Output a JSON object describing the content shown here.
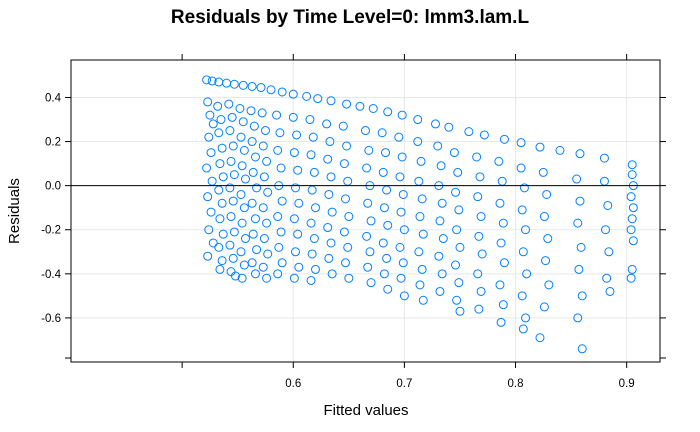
{
  "chart_data": {
    "type": "scatter",
    "title": "Residuals by Time Level=0: lmm3.lam.L",
    "xlabel": "Fitted values",
    "ylabel": "Residuals",
    "xlim": [
      0.4,
      0.93
    ],
    "ylim": [
      -0.8,
      0.57
    ],
    "x_ticks": [
      {
        "value": 0.6,
        "label": "0.6"
      },
      {
        "value": 0.7,
        "label": "0.7"
      },
      {
        "value": 0.8,
        "label": "0.8"
      },
      {
        "value": 0.9,
        "label": "0.9"
      }
    ],
    "y_ticks": [
      {
        "value": 0.4,
        "label": "0.4"
      },
      {
        "value": 0.2,
        "label": "0.2"
      },
      {
        "value": 0.0,
        "label": "0.0"
      },
      {
        "value": -0.2,
        "label": "-0.2"
      },
      {
        "value": -0.4,
        "label": "-0.4"
      },
      {
        "value": -0.6,
        "label": "-0.6"
      }
    ],
    "reference_line_y": 0.0,
    "grid": true,
    "marker": "open-circle",
    "point_color": "#0080ff",
    "points": [
      [
        0.522,
        0.48
      ],
      [
        0.527,
        0.475
      ],
      [
        0.533,
        0.47
      ],
      [
        0.54,
        0.465
      ],
      [
        0.547,
        0.46
      ],
      [
        0.555,
        0.455
      ],
      [
        0.563,
        0.45
      ],
      [
        0.571,
        0.445
      ],
      [
        0.58,
        0.435
      ],
      [
        0.59,
        0.425
      ],
      [
        0.6,
        0.415
      ],
      [
        0.612,
        0.405
      ],
      [
        0.622,
        0.395
      ],
      [
        0.634,
        0.385
      ],
      [
        0.648,
        0.37
      ],
      [
        0.66,
        0.36
      ],
      [
        0.672,
        0.35
      ],
      [
        0.685,
        0.335
      ],
      [
        0.698,
        0.32
      ],
      [
        0.712,
        0.3
      ],
      [
        0.728,
        0.28
      ],
      [
        0.74,
        0.265
      ],
      [
        0.758,
        0.245
      ],
      [
        0.772,
        0.23
      ],
      [
        0.79,
        0.21
      ],
      [
        0.805,
        0.195
      ],
      [
        0.822,
        0.175
      ],
      [
        0.84,
        0.16
      ],
      [
        0.858,
        0.145
      ],
      [
        0.88,
        0.125
      ],
      [
        0.905,
        0.095
      ],
      [
        0.523,
        0.38
      ],
      [
        0.525,
        0.32
      ],
      [
        0.528,
        0.28
      ],
      [
        0.524,
        0.22
      ],
      [
        0.526,
        0.15
      ],
      [
        0.522,
        0.08
      ],
      [
        0.527,
        0.02
      ],
      [
        0.523,
        -0.05
      ],
      [
        0.526,
        -0.12
      ],
      [
        0.524,
        -0.2
      ],
      [
        0.528,
        -0.26
      ],
      [
        0.523,
        -0.32
      ],
      [
        0.532,
        0.36
      ],
      [
        0.535,
        0.3
      ],
      [
        0.533,
        0.24
      ],
      [
        0.536,
        0.17
      ],
      [
        0.534,
        0.1
      ],
      [
        0.537,
        0.04
      ],
      [
        0.533,
        -0.02
      ],
      [
        0.536,
        -0.08
      ],
      [
        0.534,
        -0.15
      ],
      [
        0.537,
        -0.22
      ],
      [
        0.533,
        -0.28
      ],
      [
        0.536,
        -0.34
      ],
      [
        0.534,
        -0.38
      ],
      [
        0.542,
        0.37
      ],
      [
        0.545,
        0.31
      ],
      [
        0.543,
        0.25
      ],
      [
        0.546,
        0.18
      ],
      [
        0.544,
        0.11
      ],
      [
        0.547,
        0.05
      ],
      [
        0.543,
        -0.01
      ],
      [
        0.546,
        -0.07
      ],
      [
        0.544,
        -0.14
      ],
      [
        0.547,
        -0.21
      ],
      [
        0.543,
        -0.27
      ],
      [
        0.546,
        -0.33
      ],
      [
        0.544,
        -0.39
      ],
      [
        0.548,
        -0.41
      ],
      [
        0.552,
        0.35
      ],
      [
        0.555,
        0.29
      ],
      [
        0.553,
        0.22
      ],
      [
        0.556,
        0.16
      ],
      [
        0.554,
        0.09
      ],
      [
        0.557,
        0.03
      ],
      [
        0.553,
        -0.04
      ],
      [
        0.556,
        -0.1
      ],
      [
        0.554,
        -0.17
      ],
      [
        0.557,
        -0.24
      ],
      [
        0.553,
        -0.3
      ],
      [
        0.556,
        -0.36
      ],
      [
        0.554,
        -0.42
      ],
      [
        0.562,
        0.34
      ],
      [
        0.565,
        0.27
      ],
      [
        0.563,
        0.2
      ],
      [
        0.566,
        0.13
      ],
      [
        0.564,
        0.06
      ],
      [
        0.567,
        -0.01
      ],
      [
        0.563,
        -0.08
      ],
      [
        0.566,
        -0.15
      ],
      [
        0.564,
        -0.22
      ],
      [
        0.567,
        -0.29
      ],
      [
        0.563,
        -0.35
      ],
      [
        0.566,
        -0.4
      ],
      [
        0.572,
        0.33
      ],
      [
        0.575,
        0.25
      ],
      [
        0.573,
        0.18
      ],
      [
        0.576,
        0.11
      ],
      [
        0.574,
        0.04
      ],
      [
        0.577,
        -0.03
      ],
      [
        0.573,
        -0.1
      ],
      [
        0.576,
        -0.17
      ],
      [
        0.574,
        -0.24
      ],
      [
        0.577,
        -0.31
      ],
      [
        0.573,
        -0.37
      ],
      [
        0.576,
        -0.42
      ],
      [
        0.585,
        0.32
      ],
      [
        0.588,
        0.24
      ],
      [
        0.586,
        0.16
      ],
      [
        0.589,
        0.08
      ],
      [
        0.587,
        0.0
      ],
      [
        0.59,
        -0.07
      ],
      [
        0.586,
        -0.14
      ],
      [
        0.589,
        -0.21
      ],
      [
        0.587,
        -0.28
      ],
      [
        0.59,
        -0.35
      ],
      [
        0.586,
        -0.4
      ],
      [
        0.6,
        0.31
      ],
      [
        0.603,
        0.23
      ],
      [
        0.601,
        0.15
      ],
      [
        0.604,
        0.07
      ],
      [
        0.602,
        -0.01
      ],
      [
        0.605,
        -0.08
      ],
      [
        0.601,
        -0.15
      ],
      [
        0.604,
        -0.22
      ],
      [
        0.602,
        -0.3
      ],
      [
        0.605,
        -0.37
      ],
      [
        0.601,
        -0.42
      ],
      [
        0.615,
        0.3
      ],
      [
        0.618,
        0.22
      ],
      [
        0.616,
        0.14
      ],
      [
        0.619,
        0.06
      ],
      [
        0.617,
        -0.02
      ],
      [
        0.62,
        -0.1
      ],
      [
        0.616,
        -0.17
      ],
      [
        0.619,
        -0.24
      ],
      [
        0.617,
        -0.31
      ],
      [
        0.62,
        -0.38
      ],
      [
        0.616,
        -0.43
      ],
      [
        0.63,
        0.28
      ],
      [
        0.633,
        0.2
      ],
      [
        0.631,
        0.12
      ],
      [
        0.634,
        0.04
      ],
      [
        0.632,
        -0.04
      ],
      [
        0.635,
        -0.12
      ],
      [
        0.631,
        -0.19
      ],
      [
        0.634,
        -0.26
      ],
      [
        0.632,
        -0.33
      ],
      [
        0.635,
        -0.4
      ],
      [
        0.645,
        0.27
      ],
      [
        0.648,
        0.18
      ],
      [
        0.646,
        0.1
      ],
      [
        0.649,
        0.02
      ],
      [
        0.647,
        -0.06
      ],
      [
        0.65,
        -0.14
      ],
      [
        0.646,
        -0.21
      ],
      [
        0.649,
        -0.28
      ],
      [
        0.647,
        -0.35
      ],
      [
        0.65,
        -0.42
      ],
      [
        0.665,
        0.25
      ],
      [
        0.668,
        0.16
      ],
      [
        0.666,
        0.08
      ],
      [
        0.669,
        0.0
      ],
      [
        0.667,
        -0.08
      ],
      [
        0.67,
        -0.16
      ],
      [
        0.666,
        -0.23
      ],
      [
        0.669,
        -0.3
      ],
      [
        0.667,
        -0.37
      ],
      [
        0.67,
        -0.44
      ],
      [
        0.68,
        0.24
      ],
      [
        0.683,
        0.15
      ],
      [
        0.681,
        0.06
      ],
      [
        0.684,
        -0.02
      ],
      [
        0.682,
        -0.1
      ],
      [
        0.685,
        -0.18
      ],
      [
        0.681,
        -0.26
      ],
      [
        0.684,
        -0.33
      ],
      [
        0.682,
        -0.4
      ],
      [
        0.685,
        -0.47
      ],
      [
        0.695,
        0.22
      ],
      [
        0.698,
        0.13
      ],
      [
        0.696,
        0.04
      ],
      [
        0.699,
        -0.04
      ],
      [
        0.697,
        -0.12
      ],
      [
        0.7,
        -0.2
      ],
      [
        0.696,
        -0.28
      ],
      [
        0.699,
        -0.35
      ],
      [
        0.697,
        -0.42
      ],
      [
        0.7,
        -0.5
      ],
      [
        0.712,
        0.2
      ],
      [
        0.715,
        0.11
      ],
      [
        0.713,
        0.02
      ],
      [
        0.716,
        -0.06
      ],
      [
        0.714,
        -0.14
      ],
      [
        0.717,
        -0.22
      ],
      [
        0.713,
        -0.3
      ],
      [
        0.716,
        -0.38
      ],
      [
        0.714,
        -0.45
      ],
      [
        0.717,
        -0.52
      ],
      [
        0.73,
        0.18
      ],
      [
        0.733,
        0.09
      ],
      [
        0.731,
        0.0
      ],
      [
        0.734,
        -0.08
      ],
      [
        0.732,
        -0.16
      ],
      [
        0.735,
        -0.24
      ],
      [
        0.731,
        -0.32
      ],
      [
        0.734,
        -0.4
      ],
      [
        0.732,
        -0.48
      ],
      [
        0.745,
        0.15
      ],
      [
        0.748,
        0.06
      ],
      [
        0.746,
        -0.03
      ],
      [
        0.749,
        -0.11
      ],
      [
        0.747,
        -0.2
      ],
      [
        0.75,
        -0.28
      ],
      [
        0.746,
        -0.36
      ],
      [
        0.749,
        -0.44
      ],
      [
        0.747,
        -0.52
      ],
      [
        0.75,
        -0.57
      ],
      [
        0.765,
        0.13
      ],
      [
        0.768,
        0.04
      ],
      [
        0.766,
        -0.05
      ],
      [
        0.769,
        -0.14
      ],
      [
        0.767,
        -0.23
      ],
      [
        0.77,
        -0.31
      ],
      [
        0.766,
        -0.4
      ],
      [
        0.769,
        -0.48
      ],
      [
        0.767,
        -0.56
      ],
      [
        0.785,
        0.11
      ],
      [
        0.788,
        0.02
      ],
      [
        0.786,
        -0.08
      ],
      [
        0.789,
        -0.17
      ],
      [
        0.787,
        -0.26
      ],
      [
        0.79,
        -0.35
      ],
      [
        0.786,
        -0.45
      ],
      [
        0.789,
        -0.54
      ],
      [
        0.787,
        -0.62
      ],
      [
        0.805,
        0.08
      ],
      [
        0.808,
        -0.01
      ],
      [
        0.806,
        -0.11
      ],
      [
        0.809,
        -0.2
      ],
      [
        0.807,
        -0.3
      ],
      [
        0.81,
        -0.4
      ],
      [
        0.806,
        -0.5
      ],
      [
        0.809,
        -0.6
      ],
      [
        0.807,
        -0.65
      ],
      [
        0.825,
        0.06
      ],
      [
        0.828,
        -0.04
      ],
      [
        0.826,
        -0.14
      ],
      [
        0.829,
        -0.24
      ],
      [
        0.827,
        -0.34
      ],
      [
        0.83,
        -0.45
      ],
      [
        0.826,
        -0.55
      ],
      [
        0.822,
        -0.69
      ],
      [
        0.855,
        0.03
      ],
      [
        0.858,
        -0.07
      ],
      [
        0.856,
        -0.17
      ],
      [
        0.859,
        -0.28
      ],
      [
        0.857,
        -0.38
      ],
      [
        0.86,
        -0.5
      ],
      [
        0.856,
        -0.6
      ],
      [
        0.86,
        -0.74
      ],
      [
        0.88,
        0.02
      ],
      [
        0.883,
        -0.09
      ],
      [
        0.881,
        -0.2
      ],
      [
        0.884,
        -0.3
      ],
      [
        0.882,
        -0.42
      ],
      [
        0.885,
        -0.48
      ],
      [
        0.905,
        0.05
      ],
      [
        0.906,
        0.0
      ],
      [
        0.904,
        -0.05
      ],
      [
        0.906,
        -0.1
      ],
      [
        0.905,
        -0.15
      ],
      [
        0.904,
        -0.2
      ],
      [
        0.906,
        -0.25
      ],
      [
        0.905,
        -0.38
      ],
      [
        0.904,
        -0.42
      ]
    ]
  }
}
